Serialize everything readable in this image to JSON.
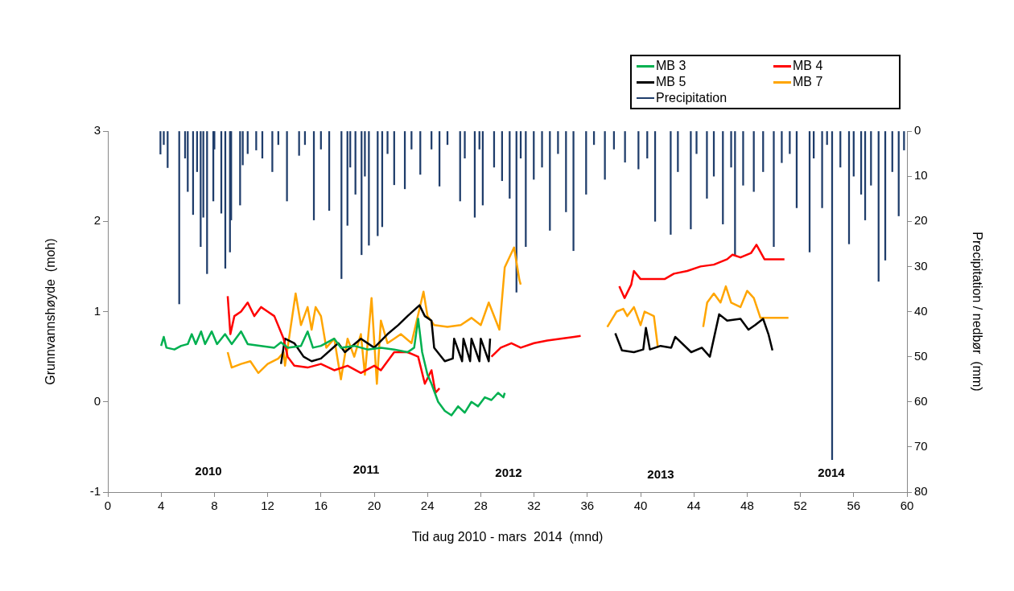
{
  "chart_data": {
    "type": "line",
    "xlabel": "Tid aug 2010 - mars  2014  (mnd)",
    "ylabel": "Grunnvannshøyde  (moh)",
    "y2label": "Precipitation / nedbør  (mm)",
    "xlim": [
      0,
      60
    ],
    "xticks": [
      0,
      4,
      8,
      12,
      16,
      20,
      24,
      28,
      32,
      36,
      40,
      44,
      48,
      52,
      56,
      60
    ],
    "ylim": [
      -1,
      3
    ],
    "yticks": [
      -1,
      0,
      1,
      2,
      3
    ],
    "y2lim": [
      80,
      0
    ],
    "y2ticks": [
      0,
      10,
      20,
      30,
      40,
      50,
      60,
      70,
      80
    ],
    "grid": false,
    "legend": "top right",
    "marker": "none",
    "line_style": "solid",
    "annotations": [
      "2010",
      "2011",
      "2012",
      "2013",
      "2014"
    ],
    "series": [
      {
        "name": "MB 3",
        "color": "#00b050",
        "x": [
          4.0,
          4.2,
          4.4,
          5.0,
          5.5,
          6,
          6.3,
          6.6,
          7,
          7.3,
          7.8,
          8.2,
          8.8,
          9.3,
          10,
          10.5,
          11.5,
          12.5,
          13,
          13.5,
          14.5,
          15,
          15.4,
          16,
          17,
          17.5,
          18.5,
          19.5,
          20.5,
          21.5,
          22.5,
          23,
          23.3,
          23.6,
          24,
          24.3,
          24.8,
          25.3,
          25.8,
          26.3,
          26.8,
          27.3,
          27.8,
          28.3,
          28.8,
          29.3,
          29.7,
          29.8
        ],
        "values": [
          0.62,
          0.72,
          0.6,
          0.58,
          0.62,
          0.64,
          0.75,
          0.64,
          0.78,
          0.64,
          0.78,
          0.64,
          0.75,
          0.64,
          0.78,
          0.64,
          0.62,
          0.6,
          0.66,
          0.6,
          0.62,
          0.78,
          0.6,
          0.62,
          0.7,
          0.6,
          0.62,
          0.58,
          0.6,
          0.58,
          0.55,
          0.6,
          0.92,
          0.55,
          0.3,
          0.2,
          0.0,
          -0.1,
          -0.15,
          -0.05,
          -0.12,
          0.0,
          -0.05,
          0.05,
          0.02,
          0.1,
          0.05,
          0.1
        ]
      },
      {
        "name": "MB 4",
        "color": "#ff0000",
        "x": [
          9,
          9.2,
          9.5,
          10,
          10.5,
          11,
          11.5,
          12,
          12.5,
          13.2,
          13.5,
          14,
          15,
          16,
          17,
          18,
          19,
          20,
          20.5,
          21.5,
          22.5,
          23.3,
          23.8,
          24.3,
          24.6,
          24.9,
          26.5,
          28.8,
          29.5,
          30.3,
          31,
          32,
          33,
          34,
          35,
          35.5,
          37,
          38.4,
          38.8,
          39.3,
          39.5,
          40,
          41.8,
          42.5,
          43.5,
          44.5,
          45.5,
          46.5,
          46.9,
          47.5,
          48.3,
          48.7,
          49.3,
          50.8
        ],
        "values": [
          1.17,
          0.75,
          0.95,
          1.0,
          1.1,
          0.95,
          1.05,
          1.0,
          0.95,
          0.7,
          0.5,
          0.4,
          0.38,
          0.42,
          0.35,
          0.4,
          0.32,
          0.4,
          0.35,
          0.55,
          0.55,
          0.5,
          0.2,
          0.35,
          0.1,
          0.15,
          null,
          0.5,
          0.6,
          0.65,
          0.6,
          0.65,
          0.68,
          0.7,
          0.72,
          0.73,
          null,
          1.28,
          1.15,
          1.3,
          1.45,
          1.36,
          1.36,
          1.42,
          1.45,
          1.5,
          1.52,
          1.58,
          1.63,
          1.6,
          1.65,
          1.74,
          1.58,
          1.58
        ]
      },
      {
        "name": "MB 5",
        "color": "#000000",
        "x": [
          13,
          13.3,
          14,
          14.7,
          15.3,
          16,
          17.3,
          17.8,
          19,
          20,
          21,
          21.8,
          22.5,
          23.4,
          23.8,
          24.3,
          24.5,
          25.3,
          25.9,
          26.0,
          26.6,
          26.7,
          27.2,
          27.3,
          27.9,
          28.0,
          28.6,
          28.7,
          37,
          38.1,
          38.6,
          39.5,
          40.2,
          40.4,
          40.7,
          41.5,
          42.3,
          42.6,
          43.8,
          44.6,
          45.2,
          45.9,
          46.5,
          47.5,
          48.1,
          48.6,
          49.2,
          49.6,
          49.9
        ],
        "values": [
          0.42,
          0.7,
          0.65,
          0.5,
          0.45,
          0.48,
          0.65,
          0.55,
          0.7,
          0.6,
          0.75,
          0.85,
          0.95,
          1.07,
          0.95,
          0.9,
          0.6,
          0.45,
          0.48,
          0.7,
          0.45,
          0.7,
          0.45,
          0.7,
          0.45,
          0.7,
          0.45,
          0.7,
          null,
          0.76,
          0.57,
          0.55,
          0.58,
          0.82,
          0.58,
          0.62,
          0.6,
          0.72,
          0.55,
          0.6,
          0.5,
          0.97,
          0.9,
          0.92,
          0.8,
          0.85,
          0.92,
          0.75,
          0.57
        ]
      },
      {
        "name": "MB 7",
        "color": "#ffa500",
        "x": [
          9,
          9.3,
          10,
          10.7,
          11.3,
          12,
          12.8,
          13.2,
          13.3,
          14.1,
          14.5,
          15,
          15.3,
          15.6,
          16,
          16.4,
          17,
          17.5,
          18,
          18.5,
          19,
          19.3,
          19.8,
          20.2,
          20.5,
          21,
          21.5,
          22,
          22.8,
          23.7,
          24,
          24.5,
          25.5,
          26.5,
          27.3,
          28,
          28.6,
          29.4,
          29.8,
          30.5,
          30.9,
          31,
          33,
          37.5,
          38.2,
          38.7,
          39,
          39.5,
          40,
          40.3,
          41,
          41.3,
          43,
          44.7,
          45,
          45.5,
          46,
          46.4,
          46.8,
          47.5,
          48,
          48.5,
          49,
          51.1
        ],
        "values": [
          0.55,
          0.38,
          0.42,
          0.45,
          0.32,
          0.42,
          0.48,
          0.55,
          0.4,
          1.2,
          0.85,
          1.05,
          0.8,
          1.05,
          0.95,
          0.6,
          0.7,
          0.25,
          0.7,
          0.5,
          0.75,
          0.3,
          1.15,
          0.2,
          0.9,
          0.65,
          0.7,
          0.75,
          0.65,
          1.22,
          0.95,
          0.85,
          0.83,
          0.85,
          0.93,
          0.85,
          1.1,
          0.8,
          1.49,
          1.71,
          1.35,
          1.3,
          null,
          0.83,
          1.0,
          1.03,
          0.95,
          1.05,
          0.85,
          1.0,
          0.95,
          0.6,
          null,
          0.83,
          1.1,
          1.2,
          1.1,
          1.28,
          1.1,
          1.05,
          1.23,
          1.15,
          0.93,
          0.93
        ]
      },
      {
        "name": "Precipitation",
        "type": "bar",
        "axis": "y2",
        "color": "#1f3d6b",
        "x": [
          3.95,
          4.2,
          4.49,
          5.36,
          5.8,
          6.0,
          6.4,
          6.7,
          6.97,
          7.17,
          7.45,
          7.92,
          8.0,
          8.52,
          8.82,
          9.17,
          9.26,
          9.93,
          10.13,
          10.5,
          11.14,
          11.6,
          12.35,
          12.8,
          13.45,
          14.36,
          14.8,
          15.47,
          16.0,
          16.62,
          17.54,
          17.99,
          18.2,
          18.59,
          19.05,
          19.3,
          19.6,
          20.26,
          20.6,
          21.0,
          21.5,
          22.3,
          22.8,
          23.46,
          24.3,
          24.9,
          25.5,
          26.45,
          26.8,
          27.55,
          27.9,
          28.15,
          29.0,
          29.6,
          30.17,
          30.68,
          31.0,
          31.38,
          31.98,
          32.6,
          33.19,
          33.8,
          34.4,
          34.96,
          35.91,
          36.5,
          37.32,
          38.0,
          38.83,
          39.84,
          40.5,
          41.09,
          42.26,
          42.8,
          43.77,
          44.2,
          44.98,
          45.5,
          46.18,
          46.8,
          47.09,
          47.7,
          48.5,
          49.2,
          50.0,
          50.6,
          51.2,
          51.72,
          52.69,
          53.0,
          53.63,
          54.0,
          54.38,
          55.0,
          55.65,
          56.0,
          56.56,
          56.86,
          57.3,
          57.87,
          58.37,
          58.9,
          59.38,
          59.78
        ],
        "values": [
          5.1,
          3,
          8.1,
          38.3,
          6,
          13.4,
          18.5,
          9,
          25.6,
          19.1,
          31.6,
          15.5,
          4,
          18.2,
          30.4,
          26.8,
          19.7,
          16.4,
          7.5,
          5,
          4.2,
          6,
          9.0,
          3,
          15.5,
          5.4,
          3,
          19.7,
          4,
          17.6,
          32.7,
          20.9,
          8,
          14.0,
          27.4,
          10,
          25.3,
          23.2,
          21.2,
          5,
          11.9,
          12.8,
          4,
          9.6,
          4,
          12.2,
          3,
          15.5,
          6,
          19.1,
          4,
          16.4,
          8,
          11,
          14.9,
          35.7,
          6,
          25.6,
          10.7,
          8,
          22.0,
          5,
          17.9,
          26.5,
          14.0,
          3,
          10.7,
          4,
          6.9,
          8.4,
          6,
          20.0,
          22.9,
          9,
          21.7,
          5,
          14.9,
          10,
          20.6,
          8,
          27.4,
          12,
          13.4,
          9,
          25.6,
          7,
          5,
          17.0,
          26.8,
          6,
          17.0,
          3,
          72.8,
          8,
          25.0,
          10,
          14.0,
          19.7,
          12,
          33.3,
          28.6,
          9,
          18.8,
          4.2
        ]
      }
    ]
  }
}
